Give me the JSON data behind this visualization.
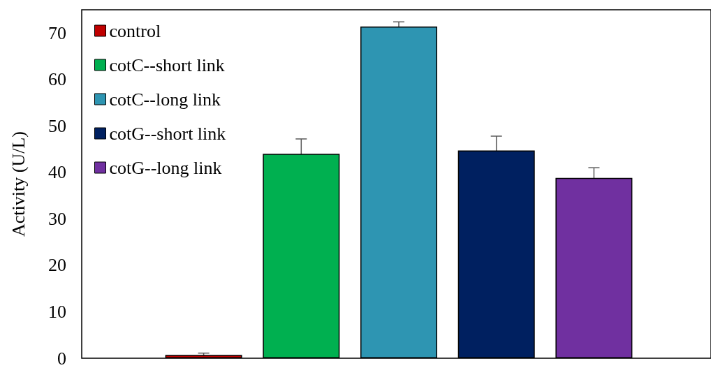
{
  "chart_data": {
    "type": "bar",
    "ylabel": "Activity (U/L)",
    "categories": [
      null
    ],
    "series": [
      {
        "name": "control",
        "color": "#c00000",
        "values": [
          0.7
        ],
        "errors": [
          0.4
        ]
      },
      {
        "name": "cotC--short link",
        "color": "#00b050",
        "values": [
          44.0
        ],
        "errors": [
          3.2
        ]
      },
      {
        "name": "cotC--long link",
        "color": "#2e95b2",
        "values": [
          71.4
        ],
        "errors": [
          1.0
        ]
      },
      {
        "name": "cotG--short link",
        "color": "#002060",
        "values": [
          44.7
        ],
        "errors": [
          3.1
        ]
      },
      {
        "name": "cotG--long link",
        "color": "#7030a0",
        "values": [
          38.8
        ],
        "errors": [
          2.2
        ]
      }
    ],
    "ylim": [
      0,
      75
    ],
    "yticks": [
      0,
      10,
      20,
      30,
      40,
      50,
      60,
      70
    ],
    "grid": false,
    "legend": "top left",
    "tick_labels": "y"
  }
}
